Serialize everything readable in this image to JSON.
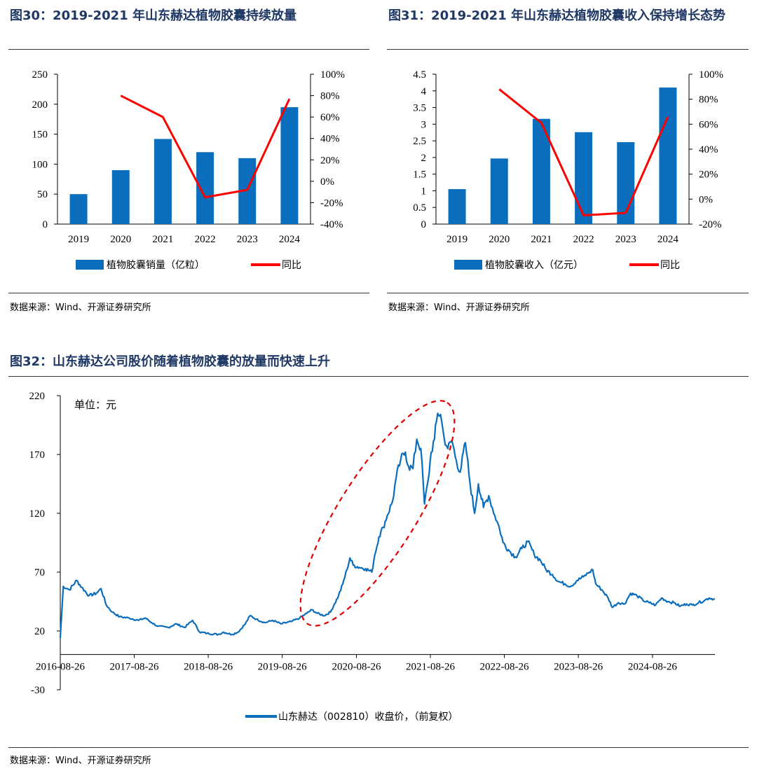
{
  "charts": {
    "fig30": {
      "title": "图30：2019-2021 年山东赫达植物胶囊持续放量",
      "source": "数据来源：Wind、开源证券研究所"
    },
    "fig31": {
      "title": "图31：2019-2021 年山东赫达植物胶囊收入保持增长态势",
      "source": "数据来源：Wind、开源证券研究所"
    },
    "fig32": {
      "title": "图32：山东赫达公司股价随着植物胶囊的放量而快速上升",
      "source": "数据来源：Wind、开源证券研究所"
    }
  },
  "colors": {
    "bar": "#0a6ebd",
    "line": "#ff0000",
    "title": "#1f3864",
    "price": "#0a6ebd",
    "ellipse": "#e00000"
  },
  "chart_data": [
    {
      "id": "fig30",
      "type": "bar",
      "title": "2019-2021 年山东赫达植物胶囊持续放量",
      "categories": [
        "2019",
        "2020",
        "2021",
        "2022",
        "2023",
        "2024"
      ],
      "series": [
        {
          "name": "植物胶囊销量（亿粒）",
          "type": "bar",
          "axis": "left",
          "values": [
            50,
            90,
            142,
            120,
            110,
            195
          ]
        },
        {
          "name": "同比",
          "type": "line",
          "axis": "right",
          "unit": "%",
          "values": [
            null,
            80,
            60,
            -15,
            -8,
            77
          ]
        }
      ],
      "left_axis": {
        "min": 0,
        "max": 250,
        "step": 50,
        "ticks": [
          "0",
          "50",
          "100",
          "150",
          "200",
          "250"
        ]
      },
      "right_axis": {
        "min": -40,
        "max": 100,
        "step": 20,
        "ticks": [
          "-40%",
          "-20%",
          "0%",
          "20%",
          "40%",
          "60%",
          "80%",
          "100%"
        ]
      },
      "legend": [
        "植物胶囊销量（亿粒）",
        "同比"
      ]
    },
    {
      "id": "fig31",
      "type": "bar",
      "title": "2019-2021 年山东赫达植物胶囊收入保持增长态势",
      "categories": [
        "2019",
        "2020",
        "2021",
        "2022",
        "2023",
        "2024"
      ],
      "series": [
        {
          "name": "植物胶囊收入（亿元）",
          "type": "bar",
          "axis": "left",
          "values": [
            1.05,
            1.97,
            3.16,
            2.76,
            2.46,
            4.1
          ]
        },
        {
          "name": "同比",
          "type": "line",
          "axis": "right",
          "unit": "%",
          "values": [
            null,
            88,
            61,
            -13,
            -11,
            66
          ]
        }
      ],
      "left_axis": {
        "min": 0,
        "max": 4.5,
        "step": 0.5,
        "ticks": [
          "0",
          "0.5",
          "1",
          "1.5",
          "2",
          "2.5",
          "3",
          "3.5",
          "4",
          "4.5"
        ]
      },
      "right_axis": {
        "min": -20,
        "max": 100,
        "step": 20,
        "ticks": [
          "-20%",
          "0%",
          "20%",
          "40%",
          "60%",
          "80%",
          "100%"
        ]
      },
      "legend": [
        "植物胶囊收入（亿元）",
        "同比"
      ]
    },
    {
      "id": "fig32",
      "type": "line",
      "title": "山东赫达公司股价随着植物胶囊的放量而快速上升",
      "unit_label": "单位：元",
      "x_start": "2016-08-26",
      "x_end": "2025-06-30",
      "x_ticks": [
        "2016-08-26",
        "2017-08-26",
        "2018-08-26",
        "2019-08-26",
        "2020-08-26",
        "2021-08-26",
        "2022-08-26",
        "2023-08-26",
        "2024-08-26"
      ],
      "y_axis": {
        "min": -30,
        "max": 220,
        "ticks": [
          "-30",
          "20",
          "70",
          "120",
          "170",
          "220"
        ]
      },
      "series": [
        {
          "name": "山东赫达（002810）收盘价，（前复权）",
          "points": [
            [
              "2016-08-26",
              14
            ],
            [
              "2016-09-10",
              58
            ],
            [
              "2016-10-10",
              55
            ],
            [
              "2016-11-15",
              63
            ],
            [
              "2016-12-10",
              57
            ],
            [
              "2017-01-15",
              50
            ],
            [
              "2017-02-20",
              52
            ],
            [
              "2017-03-15",
              56
            ],
            [
              "2017-04-10",
              42
            ],
            [
              "2017-05-10",
              36
            ],
            [
              "2017-06-15",
              32
            ],
            [
              "2017-08-01",
              31
            ],
            [
              "2017-09-15",
              29
            ],
            [
              "2017-10-20",
              31
            ],
            [
              "2017-11-20",
              27
            ],
            [
              "2017-12-20",
              24
            ],
            [
              "2018-02-10",
              23
            ],
            [
              "2018-03-20",
              26
            ],
            [
              "2018-05-01",
              23
            ],
            [
              "2018-06-10",
              29
            ],
            [
              "2018-07-15",
              19
            ],
            [
              "2018-08-20",
              18
            ],
            [
              "2018-10-15",
              17
            ],
            [
              "2018-11-10",
              19
            ],
            [
              "2018-12-20",
              17
            ],
            [
              "2019-01-20",
              19
            ],
            [
              "2019-02-25",
              26
            ],
            [
              "2019-03-20",
              33
            ],
            [
              "2019-04-20",
              30
            ],
            [
              "2019-06-01",
              27
            ],
            [
              "2019-07-10",
              29
            ],
            [
              "2019-08-20",
              26
            ],
            [
              "2019-10-10",
              28
            ],
            [
              "2019-11-20",
              31
            ],
            [
              "2019-12-25",
              35
            ],
            [
              "2020-01-20",
              38
            ],
            [
              "2020-02-15",
              35
            ],
            [
              "2020-03-20",
              33
            ],
            [
              "2020-04-20",
              36
            ],
            [
              "2020-05-10",
              43
            ],
            [
              "2020-05-30",
              50
            ],
            [
              "2020-06-20",
              60
            ],
            [
              "2020-07-10",
              72
            ],
            [
              "2020-07-25",
              82
            ],
            [
              "2020-08-10",
              76
            ],
            [
              "2020-09-10",
              74
            ],
            [
              "2020-10-10",
              73
            ],
            [
              "2020-11-10",
              70
            ],
            [
              "2020-11-25",
              85
            ],
            [
              "2020-12-15",
              100
            ],
            [
              "2021-01-05",
              108
            ],
            [
              "2021-01-25",
              118
            ],
            [
              "2021-02-20",
              130
            ],
            [
              "2021-03-10",
              150
            ],
            [
              "2021-04-01",
              165
            ],
            [
              "2021-04-25",
              172
            ],
            [
              "2021-05-10",
              160
            ],
            [
              "2021-06-01",
              158
            ],
            [
              "2021-06-20",
              183
            ],
            [
              "2021-07-10",
              175
            ],
            [
              "2021-07-28",
              128
            ],
            [
              "2021-08-15",
              148
            ],
            [
              "2021-08-30",
              172
            ],
            [
              "2021-09-15",
              183
            ],
            [
              "2021-10-01",
              205
            ],
            [
              "2021-10-15",
              204
            ],
            [
              "2021-11-01",
              185
            ],
            [
              "2021-11-20",
              175
            ],
            [
              "2021-12-10",
              182
            ],
            [
              "2022-01-01",
              165
            ],
            [
              "2022-01-20",
              155
            ],
            [
              "2022-02-15",
              180
            ],
            [
              "2022-03-10",
              145
            ],
            [
              "2022-04-01",
              120
            ],
            [
              "2022-04-20",
              145
            ],
            [
              "2022-05-15",
              125
            ],
            [
              "2022-06-10",
              135
            ],
            [
              "2022-07-10",
              118
            ],
            [
              "2022-08-01",
              108
            ],
            [
              "2022-08-20",
              95
            ],
            [
              "2022-09-20",
              88
            ],
            [
              "2022-10-20",
              83
            ],
            [
              "2022-11-20",
              90
            ],
            [
              "2022-12-20",
              96
            ],
            [
              "2023-01-20",
              85
            ],
            [
              "2023-02-20",
              80
            ],
            [
              "2023-03-20",
              72
            ],
            [
              "2023-04-20",
              68
            ],
            [
              "2023-05-20",
              62
            ],
            [
              "2023-06-20",
              60
            ],
            [
              "2023-07-20",
              58
            ],
            [
              "2023-08-20",
              63
            ],
            [
              "2023-09-20",
              66
            ],
            [
              "2023-10-20",
              70
            ],
            [
              "2023-11-05",
              72
            ],
            [
              "2023-11-20",
              60
            ],
            [
              "2023-12-20",
              55
            ],
            [
              "2024-01-20",
              48
            ],
            [
              "2024-02-10",
              40
            ],
            [
              "2024-03-10",
              44
            ],
            [
              "2024-04-10",
              43
            ],
            [
              "2024-05-10",
              52
            ],
            [
              "2024-06-10",
              50
            ],
            [
              "2024-07-10",
              46
            ],
            [
              "2024-08-10",
              44
            ],
            [
              "2024-09-10",
              42
            ],
            [
              "2024-10-10",
              48
            ],
            [
              "2024-11-10",
              45
            ],
            [
              "2024-12-10",
              44
            ],
            [
              "2025-01-10",
              41
            ],
            [
              "2025-02-10",
              43
            ],
            [
              "2025-03-10",
              42
            ],
            [
              "2025-04-10",
              44
            ],
            [
              "2025-05-10",
              46
            ],
            [
              "2025-06-01",
              48
            ],
            [
              "2025-06-30",
              47
            ]
          ]
        }
      ],
      "annotation": "red dashed ellipse around the 2020-2021 price surge",
      "legend": [
        "山东赫达（002810）收盘价，（前复权）"
      ]
    }
  ]
}
